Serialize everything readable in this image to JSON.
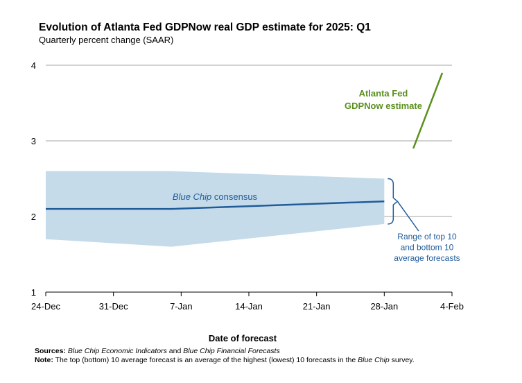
{
  "chart_data": {
    "type": "line",
    "title": "Evolution of Atlanta Fed GDPNow real GDP estimate for 2025: Q1",
    "subtitle": "Quarterly percent change (SAAR)",
    "xlabel": "Date of forecast",
    "ylabel": "",
    "ylim": [
      1,
      4
    ],
    "yticks": [
      "1",
      "2",
      "3",
      "4"
    ],
    "xticks": [
      "24-Dec",
      "31-Dec",
      "7-Jan",
      "14-Jan",
      "21-Jan",
      "28-Jan",
      "4-Feb"
    ],
    "grid": true,
    "colors": {
      "consensus": "#1f5c99",
      "band": "#c5dbea",
      "gdpnow": "#5a8f1e",
      "annotation": "#1f5c99"
    },
    "series": [
      {
        "name": "Blue Chip consensus",
        "x": [
          "24-Dec",
          "6-Jan",
          "28-Jan"
        ],
        "values": [
          2.1,
          2.1,
          2.2
        ]
      },
      {
        "name": "Atlanta Fed GDPNow estimate",
        "x": [
          "31-Jan",
          "3-Feb"
        ],
        "values": [
          2.9,
          3.9
        ]
      }
    ],
    "band": {
      "name": "Range of top 10 and bottom 10 average forecasts",
      "x": [
        "24-Dec",
        "6-Jan",
        "28-Jan"
      ],
      "upper": [
        2.6,
        2.6,
        2.5
      ],
      "lower": [
        1.7,
        1.6,
        1.9
      ]
    },
    "annotations": {
      "consensus_prefix": "Blue Chip",
      "consensus_suffix": " consensus",
      "gdpnow_line1": "Atlanta Fed",
      "gdpnow_line2": "GDPNow estimate",
      "range_line1": "Range of top 10",
      "range_line2": "and bottom 10",
      "range_line3": "average forecasts"
    }
  },
  "notes": {
    "sources_label": "Sources:",
    "sources_src1": "Blue Chip Economic Indicators",
    "sources_and": " and ",
    "sources_src2": "Blue Chip Financial Forecasts",
    "note_label": "Note:",
    "note_text_a": " The top (bottom) 10 average forecast is an average of the highest (lowest) 10 forecasts in the ",
    "note_src": "Blue Chip",
    "note_text_b": " survey."
  }
}
